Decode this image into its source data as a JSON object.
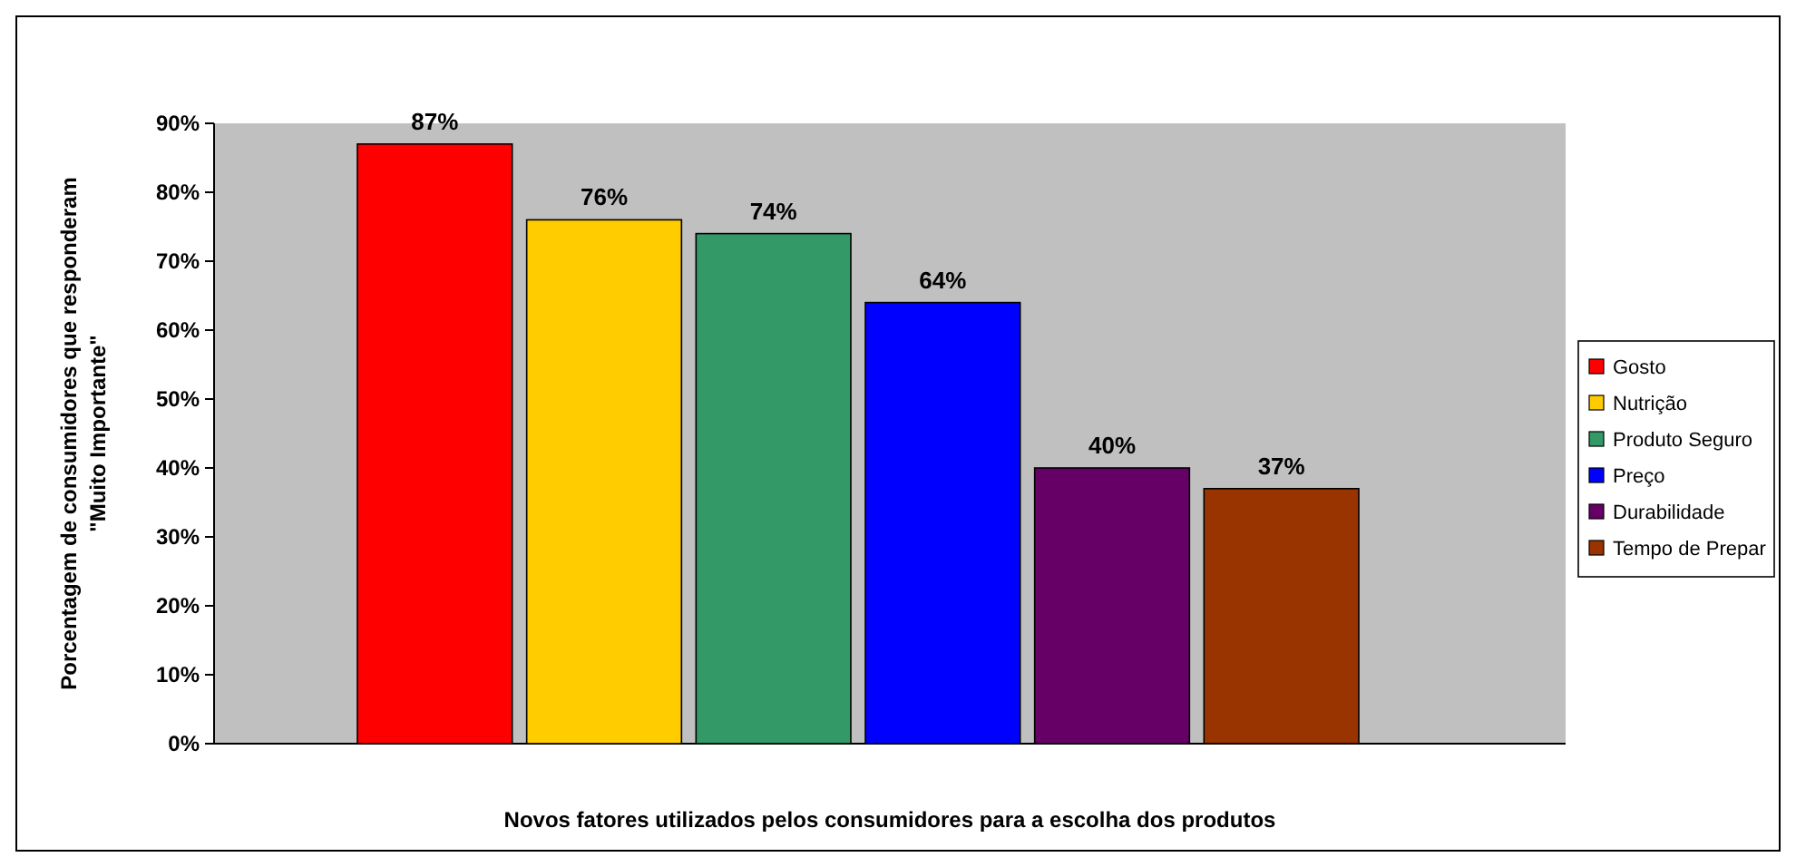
{
  "chart_data": {
    "type": "bar",
    "xlabel": "Novos fatores utilizados pelos consumidores para a escolha dos produtos",
    "ylabel": "Porcentagem de consumidores que responderam\n\"Muito Importante\"",
    "categories": [
      null
    ],
    "series": [
      {
        "name": "Gosto",
        "color": "#ff0000",
        "values": [
          87
        ],
        "value_labels": [
          "87%"
        ]
      },
      {
        "name": "Nutrição",
        "color": "#ffcc00",
        "values": [
          76
        ],
        "value_labels": [
          "76%"
        ]
      },
      {
        "name": "Produto Seguro",
        "color": "#339966",
        "values": [
          74
        ],
        "value_labels": [
          "74%"
        ]
      },
      {
        "name": "Preço",
        "color": "#0000ff",
        "values": [
          64
        ],
        "value_labels": [
          "64%"
        ]
      },
      {
        "name": "Durabilidade",
        "color": "#660066",
        "values": [
          40
        ],
        "value_labels": [
          "40%"
        ]
      },
      {
        "name": "Tempo de Prepar",
        "color": "#993300",
        "values": [
          37
        ],
        "value_labels": [
          "37%"
        ]
      }
    ],
    "ylim": [
      0,
      90
    ],
    "yticks": [
      {
        "value": 0,
        "label": "0%"
      },
      {
        "value": 10,
        "label": "10%"
      },
      {
        "value": 20,
        "label": "20%"
      },
      {
        "value": 30,
        "label": "30%"
      },
      {
        "value": 40,
        "label": "40%"
      },
      {
        "value": 50,
        "label": "50%"
      },
      {
        "value": 60,
        "label": "60%"
      },
      {
        "value": 70,
        "label": "70%"
      },
      {
        "value": 80,
        "label": "80%"
      },
      {
        "value": 90,
        "label": "90%"
      }
    ],
    "grid": false,
    "legend": "right"
  }
}
